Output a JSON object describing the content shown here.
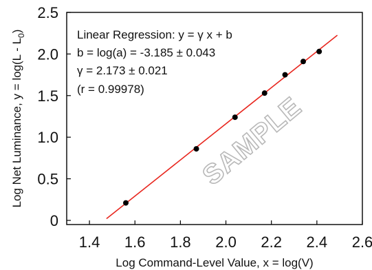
{
  "chart_data": {
    "type": "scatter",
    "title": "",
    "xlabel": "Log Command-Level Value, x = log(V)",
    "ylabel_main": "Log Net Luminance, y = log(L - L",
    "ylabel_sub": "0",
    "ylabel_end": ")",
    "xlim": [
      1.3,
      2.6
    ],
    "ylim": [
      -0.05,
      2.5
    ],
    "x_ticks": [
      1.4,
      1.6,
      1.8,
      2.0,
      2.2,
      2.4,
      2.6
    ],
    "x_tick_labels": [
      "1.4",
      "1.6",
      "1.8",
      "2.0",
      "2.2",
      "2.4",
      "2.6"
    ],
    "y_ticks": [
      0,
      0.5,
      1.0,
      1.5,
      2.0,
      2.5
    ],
    "y_tick_labels": [
      "0",
      "0.5",
      "1.0",
      "1.5",
      "2.0",
      "2.5"
    ],
    "grid": false,
    "legend": "none",
    "series": [
      {
        "x": [
          1.56,
          1.87,
          2.04,
          2.17,
          2.26,
          2.34,
          2.41
        ],
        "y": [
          0.21,
          0.86,
          1.24,
          1.53,
          1.75,
          1.91,
          2.03
        ]
      }
    ],
    "fit_line": {
      "slope": 2.173,
      "intercept": -3.185,
      "x_range": [
        1.475,
        2.49
      ],
      "color": "#e8261e"
    },
    "annotations": [
      "Linear Regression: y =  γ x + b",
      "b = log(a) = -3.185 ± 0.043",
      "γ = 2.173 ± 0.021",
      "(r = 0.99978)"
    ],
    "watermark": "SAMPLE",
    "colors": {
      "points": "#000000",
      "fit_line": "#e8261e",
      "axes": "#000000",
      "watermark_stroke": "#b8b8b8"
    }
  }
}
